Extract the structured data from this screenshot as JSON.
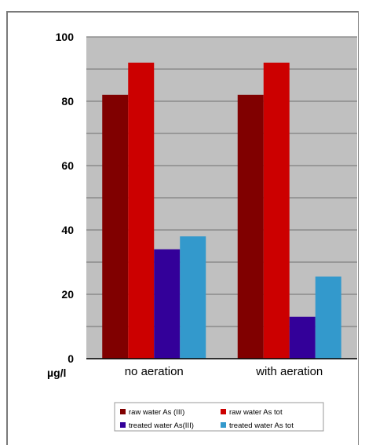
{
  "chart_data": {
    "type": "bar",
    "title": "",
    "xlabel": "",
    "ylabel": "µg/l",
    "ylim": [
      0,
      100
    ],
    "yticks": [
      0,
      20,
      40,
      60,
      80,
      100
    ],
    "categories": [
      "no aeration",
      "with aeration"
    ],
    "grid": true,
    "legend_position": "bottom",
    "series": [
      {
        "name": "raw water As (III)",
        "color": "#800000",
        "values": [
          82,
          82
        ]
      },
      {
        "name": "raw water As tot",
        "color": "#cc0000",
        "values": [
          92,
          92
        ]
      },
      {
        "name": "treated water As(III)",
        "color": "#330099",
        "values": [
          34,
          13
        ]
      },
      {
        "name": "treated water As tot",
        "color": "#3399cc",
        "values": [
          38,
          25.5
        ]
      }
    ],
    "colors": {
      "plot_background": "#c0c0c0",
      "gridline": "#808080"
    }
  }
}
